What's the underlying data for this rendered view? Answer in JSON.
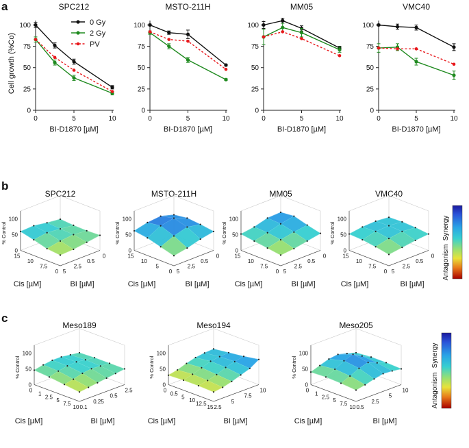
{
  "panel_labels": {
    "a": "a",
    "b": "b",
    "c": "c"
  },
  "colors": {
    "gy0": "#111111",
    "gy2": "#1f8a1f",
    "pv": "#e8171b",
    "axis": "#222222"
  },
  "chart_data": [
    {
      "type": "line",
      "title": "SPC212",
      "xlabel": "BI-D1870 [µM]",
      "ylabel": "Cell growth (%Co)",
      "xlim": [
        0,
        10
      ],
      "ylim": [
        0,
        110
      ],
      "x": [
        0,
        2.5,
        5,
        10
      ],
      "xticks": [
        0,
        5,
        10
      ],
      "yticks": [
        0,
        25,
        50,
        75,
        100
      ],
      "legend": [
        "0 Gy",
        "2 Gy",
        "PV"
      ],
      "series": [
        {
          "name": "0 Gy",
          "values": [
            100,
            76,
            57,
            27
          ],
          "err": [
            3,
            3,
            3,
            2
          ]
        },
        {
          "name": "2 Gy",
          "values": [
            83,
            56,
            38,
            20
          ],
          "err": [
            3,
            3,
            3,
            2
          ]
        },
        {
          "name": "PV",
          "values": [
            83,
            62,
            47,
            22
          ],
          "err": [
            0,
            0,
            0,
            0
          ]
        }
      ]
    },
    {
      "type": "line",
      "title": "MSTO-211H",
      "xlabel": "BI-D1870 [µM]",
      "ylabel": "",
      "xlim": [
        0,
        10
      ],
      "ylim": [
        0,
        110
      ],
      "x": [
        0,
        2.5,
        5,
        10
      ],
      "xticks": [
        0,
        5,
        10
      ],
      "yticks": [
        0,
        25,
        50,
        75,
        100
      ],
      "series": [
        {
          "name": "0 Gy",
          "values": [
            100,
            91,
            89,
            53
          ],
          "err": [
            1,
            2,
            5,
            1
          ]
        },
        {
          "name": "2 Gy",
          "values": [
            91,
            75,
            59,
            36
          ],
          "err": [
            2,
            3,
            3,
            1
          ]
        },
        {
          "name": "PV",
          "values": [
            92,
            83,
            81,
            48
          ],
          "err": [
            0,
            0,
            0,
            0
          ]
        }
      ]
    },
    {
      "type": "line",
      "title": "MM05",
      "xlabel": "BI-D1870 [µM]",
      "ylabel": "",
      "xlim": [
        0,
        10
      ],
      "ylim": [
        0,
        110
      ],
      "x": [
        0,
        2.5,
        5,
        10
      ],
      "xticks": [
        0,
        5,
        10
      ],
      "yticks": [
        0,
        25,
        50,
        75,
        100
      ],
      "series": [
        {
          "name": "0 Gy",
          "values": [
            100,
            105,
            96,
            73
          ],
          "err": [
            4,
            3,
            3,
            2
          ]
        },
        {
          "name": "2 Gy",
          "values": [
            86,
            97,
            91,
            71
          ],
          "err": [
            9,
            5,
            5,
            3
          ]
        },
        {
          "name": "PV",
          "values": [
            86,
            92,
            84,
            64
          ],
          "err": [
            0,
            0,
            0,
            0
          ]
        }
      ]
    },
    {
      "type": "line",
      "title": "VMC40",
      "xlabel": "BI-D1870 [µM]",
      "ylabel": "",
      "xlim": [
        0,
        10
      ],
      "ylim": [
        0,
        110
      ],
      "x": [
        0,
        2.5,
        5,
        10
      ],
      "xticks": [
        0,
        5,
        10
      ],
      "yticks": [
        0,
        25,
        50,
        75,
        100
      ],
      "series": [
        {
          "name": "0 Gy",
          "values": [
            100,
            98,
            97,
            74
          ],
          "err": [
            1,
            3,
            3,
            4
          ]
        },
        {
          "name": "2 Gy",
          "values": [
            73,
            74,
            57,
            41
          ],
          "err": [
            5,
            4,
            4,
            5
          ]
        },
        {
          "name": "PV",
          "values": [
            73,
            72,
            72,
            54
          ],
          "err": [
            0,
            0,
            0,
            0
          ]
        }
      ]
    },
    {
      "type": "heatmap",
      "title": "SPC212",
      "zlabel": "% Control",
      "xlabel": "Cis [µM]",
      "ylabel": "BI [µM]",
      "xticks": [
        "15",
        "10",
        "7.5",
        "0"
      ],
      "yticks": [
        "0",
        "0.5",
        "2.5",
        "5"
      ],
      "zticks": [
        "0",
        "50",
        "100"
      ],
      "values": [
        [
          0.34,
          0.36,
          0.42,
          0.48
        ],
        [
          0.38,
          0.46,
          0.5,
          0.46
        ],
        [
          0.5,
          0.56,
          0.52,
          0.47
        ],
        [
          0.6,
          0.62,
          0.55,
          0.5
        ]
      ]
    },
    {
      "type": "heatmap",
      "title": "MSTO-211H",
      "zlabel": "% Control",
      "xlabel": "Cis [µM]",
      "ylabel": "BI [µM]",
      "xticks": [
        "15",
        "10",
        "5",
        "0"
      ],
      "yticks": [
        "0",
        "0.5",
        "2.5",
        "5"
      ],
      "zticks": [
        "0",
        "50",
        "100"
      ],
      "values": [
        [
          0.32,
          0.4,
          0.52,
          0.6
        ],
        [
          0.44,
          0.62,
          0.74,
          0.66
        ],
        [
          0.56,
          0.78,
          0.86,
          0.7
        ],
        [
          0.62,
          0.72,
          0.76,
          0.64
        ]
      ]
    },
    {
      "type": "heatmap",
      "title": "MM05",
      "zlabel": "% Control",
      "xlabel": "Cis [µM]",
      "ylabel": "BI [µM]",
      "xticks": [
        "15",
        "10",
        "7.5",
        "0"
      ],
      "yticks": [
        "0",
        "0.5",
        "2.5",
        "5"
      ],
      "zticks": [
        "0",
        "50",
        "100"
      ],
      "values": [
        [
          0.34,
          0.38,
          0.46,
          0.54
        ],
        [
          0.4,
          0.5,
          0.58,
          0.64
        ],
        [
          0.46,
          0.56,
          0.68,
          0.76
        ],
        [
          0.52,
          0.58,
          0.7,
          0.72
        ]
      ]
    },
    {
      "type": "heatmap",
      "title": "VMC40",
      "zlabel": "% Control",
      "xlabel": "Cis [µM]",
      "ylabel": "BI [µM]",
      "xticks": [
        "15",
        "10",
        "7.5",
        "0"
      ],
      "yticks": [
        "0",
        "0.5",
        "2.5",
        "5"
      ],
      "zticks": [
        "0",
        "50",
        "100"
      ],
      "values": [
        [
          0.36,
          0.42,
          0.48,
          0.52
        ],
        [
          0.44,
          0.54,
          0.6,
          0.56
        ],
        [
          0.5,
          0.6,
          0.62,
          0.58
        ],
        [
          0.52,
          0.58,
          0.6,
          0.56
        ]
      ]
    },
    {
      "type": "heatmap",
      "title": "Meso189",
      "zlabel": "% Control",
      "xlabel": "Cis [µM]",
      "ylabel": "BI [µM]",
      "xticks": [
        "0",
        "1",
        "2.5",
        "5",
        "7.5",
        "10"
      ],
      "yticks": [
        "2.5",
        "0.5",
        "0.25",
        "0.1"
      ],
      "zticks": [
        "0",
        "50",
        "100"
      ],
      "values": [
        [
          0.3,
          0.34,
          0.38,
          0.42,
          0.46,
          0.5
        ],
        [
          0.36,
          0.42,
          0.5,
          0.54,
          0.52,
          0.5
        ],
        [
          0.42,
          0.5,
          0.56,
          0.58,
          0.54,
          0.5
        ],
        [
          0.46,
          0.52,
          0.56,
          0.56,
          0.52,
          0.48
        ]
      ]
    },
    {
      "type": "heatmap",
      "title": "Meso194",
      "zlabel": "% Control",
      "xlabel": "Cis [µM]",
      "ylabel": "BI [µM]",
      "xticks": [
        "0",
        "0.5",
        "5",
        "10",
        "12.5",
        "15"
      ],
      "yticks": [
        "10",
        "7.5",
        "5",
        "2.5"
      ],
      "zticks": [
        "0",
        "50",
        "100"
      ],
      "values": [
        [
          0.3,
          0.34,
          0.42,
          0.52,
          0.62,
          0.8
        ],
        [
          0.32,
          0.38,
          0.46,
          0.58,
          0.66,
          0.72
        ],
        [
          0.32,
          0.4,
          0.5,
          0.6,
          0.64,
          0.66
        ],
        [
          0.3,
          0.36,
          0.46,
          0.54,
          0.58,
          0.6
        ]
      ]
    },
    {
      "type": "heatmap",
      "title": "Meso205",
      "zlabel": "% Control",
      "xlabel": "Cis [µM]",
      "ylabel": "BI [µM]",
      "xticks": [
        "0",
        "1",
        "2.5",
        "5",
        "7.5",
        "10"
      ],
      "yticks": [
        "10",
        "5",
        "2.5",
        "0.5"
      ],
      "zticks": [
        "0",
        "50",
        "100"
      ],
      "values": [
        [
          0.36,
          0.42,
          0.5,
          0.56,
          0.54,
          0.5
        ],
        [
          0.4,
          0.52,
          0.66,
          0.74,
          0.62,
          0.52
        ],
        [
          0.42,
          0.56,
          0.72,
          0.82,
          0.66,
          0.52
        ],
        [
          0.4,
          0.5,
          0.6,
          0.64,
          0.56,
          0.48
        ]
      ]
    }
  ],
  "colorbar": {
    "top_label": "Synergy",
    "bottom_label": "Antagonism"
  }
}
